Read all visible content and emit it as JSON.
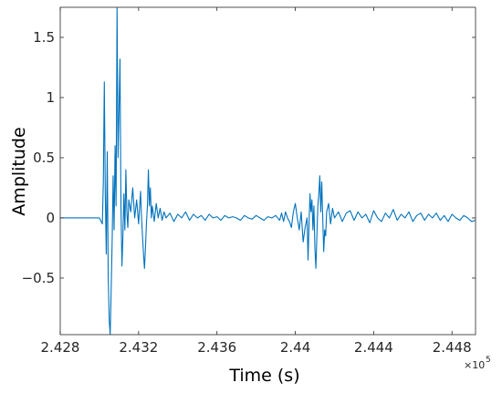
{
  "chart_data": {
    "type": "line",
    "title": "",
    "xlabel": "Time (s)",
    "ylabel": "Amplitude",
    "x_exponent_label": "×10",
    "x_exponent_power": "5",
    "xlim": [
      2.428,
      2.4492
    ],
    "ylim": [
      -0.97,
      1.75
    ],
    "x_ticks": [
      2.428,
      2.432,
      2.436,
      2.44,
      2.444,
      2.448
    ],
    "x_tick_labels": [
      "2.428",
      "2.432",
      "2.436",
      "2.44",
      "2.444",
      "2.448"
    ],
    "y_ticks": [
      -0.5,
      0,
      0.5,
      1,
      1.5
    ],
    "y_tick_labels": [
      "−0.5",
      "0",
      "0.5",
      "1",
      "1.5"
    ],
    "grid": false,
    "legend": "none",
    "line_color": "#0072BD",
    "series": [
      {
        "x": [
          2.428,
          2.4288,
          2.4296,
          2.43,
          2.43015,
          2.4302,
          2.43025,
          2.4303,
          2.43035,
          2.4304,
          2.43045,
          2.4305,
          2.43055,
          2.4306,
          2.43065,
          2.4307,
          2.43075,
          2.4308,
          2.43085,
          2.4309,
          2.43095,
          2.431,
          2.43105,
          2.4311,
          2.43115,
          2.4312,
          2.43125,
          2.4313,
          2.43135,
          2.4314,
          2.43145,
          2.4315,
          2.4316,
          2.4317,
          2.4318,
          2.4319,
          2.432,
          2.4321,
          2.43215,
          2.4322,
          2.43225,
          2.4323,
          2.43235,
          2.4324,
          2.43245,
          2.4325,
          2.43255,
          2.4326,
          2.43265,
          2.4327,
          2.4328,
          2.4329,
          2.433,
          2.4331,
          2.4332,
          2.4333,
          2.4334,
          2.4336,
          2.4338,
          2.434,
          2.4342,
          2.4344,
          2.4346,
          2.4348,
          2.435,
          2.4352,
          2.4354,
          2.4356,
          2.4358,
          2.436,
          2.4362,
          2.4364,
          2.4366,
          2.4368,
          2.437,
          2.4372,
          2.4374,
          2.4376,
          2.4378,
          2.438,
          2.4382,
          2.4384,
          2.4386,
          2.4388,
          2.439,
          2.4392,
          2.4393,
          2.4394,
          2.4395,
          2.4396,
          2.4397,
          2.4398,
          2.4399,
          2.44,
          2.4401,
          2.4402,
          2.4403,
          2.4404,
          2.4405,
          2.4406,
          2.44065,
          2.4407,
          2.44075,
          2.4408,
          2.44085,
          2.4409,
          2.44095,
          2.441,
          2.44105,
          2.4411,
          2.44115,
          2.4412,
          2.44125,
          2.4413,
          2.44135,
          2.4414,
          2.44145,
          2.4415,
          2.44155,
          2.4416,
          2.4417,
          2.4418,
          2.4419,
          2.442,
          2.4422,
          2.4424,
          2.4426,
          2.4428,
          2.443,
          2.4432,
          2.4434,
          2.4436,
          2.4438,
          2.444,
          2.4442,
          2.4444,
          2.4446,
          2.4448,
          2.445,
          2.4452,
          2.4454,
          2.4456,
          2.4458,
          2.446,
          2.4462,
          2.4464,
          2.4466,
          2.4468,
          2.447,
          2.4472,
          2.4474,
          2.4476,
          2.4478,
          2.448,
          2.4482,
          2.4484,
          2.4486,
          2.4488,
          2.449,
          2.4492
        ],
        "y": [
          0.0,
          0.0,
          0.0,
          0.0,
          -0.05,
          0.3,
          1.13,
          0.2,
          -0.3,
          0.55,
          -0.5,
          -0.85,
          -0.97,
          -0.6,
          -0.2,
          0.35,
          -0.1,
          0.6,
          0.1,
          1.75,
          0.5,
          0.9,
          1.32,
          0.1,
          -0.4,
          -0.15,
          0.2,
          -0.1,
          0.4,
          0.05,
          -0.08,
          0.15,
          0.05,
          0.25,
          0.0,
          0.15,
          -0.05,
          0.22,
          0.0,
          -0.15,
          -0.3,
          -0.42,
          -0.25,
          -0.05,
          0.1,
          0.4,
          0.1,
          0.25,
          0.0,
          0.1,
          -0.03,
          0.12,
          0.0,
          0.08,
          -0.02,
          0.05,
          0.0,
          0.04,
          -0.03,
          0.03,
          0.0,
          0.05,
          -0.02,
          0.03,
          0.0,
          0.02,
          -0.02,
          0.03,
          0.0,
          0.01,
          -0.02,
          0.02,
          0.0,
          0.01,
          0.0,
          -0.02,
          0.02,
          0.0,
          -0.01,
          0.02,
          0.0,
          -0.02,
          0.01,
          0.0,
          0.02,
          -0.02,
          0.04,
          -0.03,
          0.05,
          0.0,
          -0.03,
          -0.08,
          0.05,
          0.12,
          0.0,
          -0.1,
          0.05,
          -0.2,
          -0.08,
          0.0,
          -0.35,
          -0.05,
          0.2,
          0.05,
          0.15,
          -0.1,
          0.1,
          -0.25,
          -0.42,
          -0.15,
          0.1,
          0.2,
          0.35,
          0.05,
          0.3,
          0.0,
          -0.28,
          -0.1,
          -0.15,
          0.05,
          0.12,
          -0.05,
          0.08,
          0.0,
          0.05,
          -0.03,
          0.04,
          0.06,
          -0.02,
          0.05,
          0.0,
          0.03,
          -0.04,
          0.06,
          0.0,
          -0.03,
          0.04,
          0.0,
          0.07,
          -0.02,
          0.03,
          0.0,
          0.05,
          -0.03,
          0.02,
          0.04,
          -0.02,
          0.03,
          0.0,
          0.04,
          -0.02,
          0.02,
          -0.03,
          0.03,
          0.0,
          -0.02,
          0.02,
          0.0,
          -0.03,
          -0.02
        ]
      }
    ]
  }
}
